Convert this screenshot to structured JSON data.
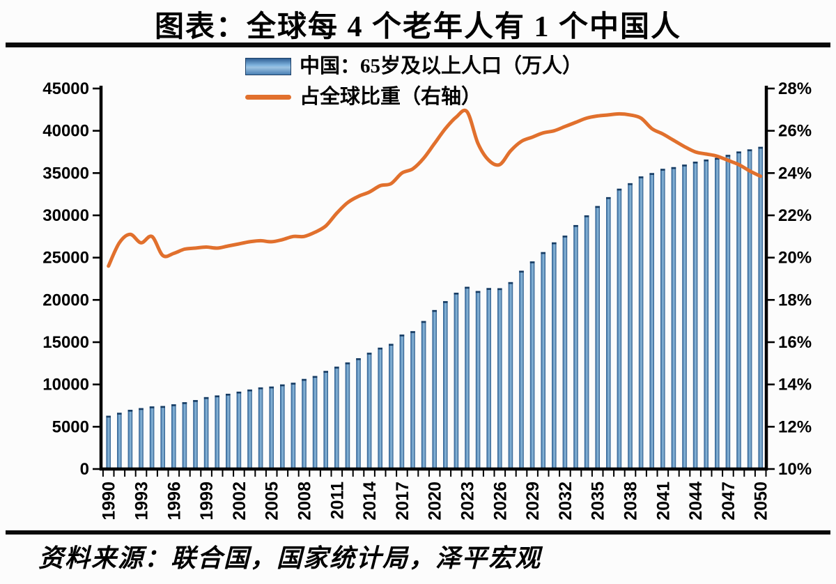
{
  "page": {
    "title": "图表：全球每 4 个老年人有 1 个中国人",
    "source": "资料来源：联合国，国家统计局，泽平宏观"
  },
  "legend": {
    "bar_label": "中国：65岁及以上人口（万人）",
    "line_label": "占全球比重（右轴）"
  },
  "colors": {
    "bar_edge": "#2a5a8c",
    "bar_center": "#7bacd4",
    "bar_cap": "#173c63",
    "line": "#e1702d",
    "axis": "#000000"
  },
  "chart_data": {
    "type": "bar",
    "title": "图表：全球每 4 个老年人有 1 个中国人",
    "xlabel": "",
    "ylabel_left": "中国：65岁及以上人口（万人）",
    "ylabel_right": "占全球比重（右轴）",
    "grid": false,
    "legend_position": "top-center",
    "x": [
      1990,
      1991,
      1992,
      1993,
      1994,
      1995,
      1996,
      1997,
      1998,
      1999,
      2000,
      2001,
      2002,
      2003,
      2004,
      2005,
      2006,
      2007,
      2008,
      2009,
      2010,
      2011,
      2012,
      2013,
      2014,
      2015,
      2016,
      2017,
      2018,
      2019,
      2020,
      2021,
      2022,
      2023,
      2024,
      2025,
      2026,
      2027,
      2028,
      2029,
      2030,
      2031,
      2032,
      2033,
      2034,
      2035,
      2036,
      2037,
      2038,
      2039,
      2040,
      2041,
      2042,
      2043,
      2044,
      2045,
      2046,
      2047,
      2048,
      2049,
      2050
    ],
    "series": [
      {
        "name": "中国：65岁及以上人口（万人）",
        "type": "bar",
        "axis": "left",
        "values": [
          6300,
          6650,
          7000,
          7200,
          7400,
          7450,
          7650,
          7900,
          8150,
          8500,
          8700,
          8900,
          9150,
          9400,
          9650,
          9750,
          10000,
          10200,
          10650,
          11000,
          11600,
          12100,
          12600,
          13100,
          13750,
          14350,
          14800,
          15900,
          16300,
          17500,
          18800,
          19850,
          20850,
          21550,
          21050,
          21400,
          21380,
          22100,
          23450,
          24550,
          25650,
          26800,
          27600,
          28850,
          30000,
          31100,
          32150,
          33150,
          33800,
          34600,
          35000,
          35500,
          35700,
          36000,
          36350,
          36600,
          36800,
          37150,
          37550,
          37800,
          38100
        ]
      },
      {
        "name": "占全球比重（右轴）",
        "type": "line",
        "axis": "right",
        "values": [
          19.6,
          20.7,
          21.1,
          20.7,
          21.0,
          20.1,
          20.2,
          20.4,
          20.45,
          20.5,
          20.45,
          20.55,
          20.65,
          20.75,
          20.8,
          20.75,
          20.85,
          21.0,
          21.0,
          21.2,
          21.5,
          22.1,
          22.6,
          22.9,
          23.1,
          23.4,
          23.5,
          24.0,
          24.2,
          24.7,
          25.4,
          26.1,
          26.65,
          26.9,
          25.4,
          24.6,
          24.4,
          25.05,
          25.5,
          25.7,
          25.9,
          26.0,
          26.2,
          26.4,
          26.6,
          26.7,
          26.75,
          26.8,
          26.75,
          26.6,
          26.1,
          25.85,
          25.55,
          25.25,
          25.0,
          24.9,
          24.8,
          24.6,
          24.4,
          24.1,
          23.85
        ]
      }
    ],
    "left_axis": {
      "min": 0,
      "max": 45000,
      "step": 5000,
      "tick_labels": [
        "0",
        "5000",
        "10000",
        "15000",
        "20000",
        "25000",
        "30000",
        "35000",
        "40000",
        "45000"
      ]
    },
    "right_axis": {
      "min": 10,
      "max": 28,
      "step": 2,
      "tick_labels": [
        "10%",
        "12%",
        "14%",
        "16%",
        "18%",
        "20%",
        "22%",
        "24%",
        "26%",
        "28%"
      ]
    },
    "x_tick_years": [
      1990,
      1993,
      1996,
      1999,
      2002,
      2005,
      2008,
      2011,
      2014,
      2017,
      2020,
      2023,
      2026,
      2029,
      2032,
      2035,
      2038,
      2041,
      2044,
      2047,
      2050
    ]
  }
}
